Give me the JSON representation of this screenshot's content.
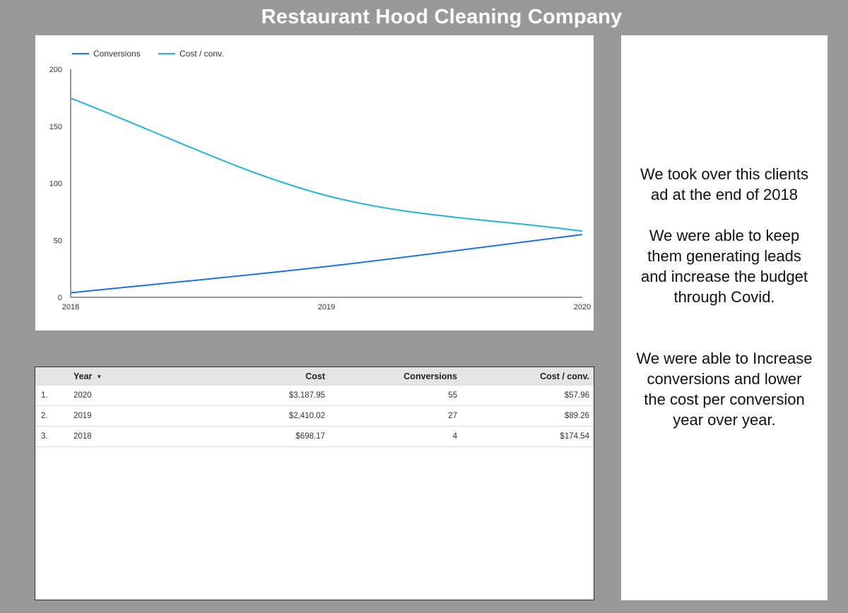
{
  "header": {
    "title": "Restaurant Hood Cleaning Company"
  },
  "chart_data": {
    "type": "line",
    "x": [
      "2018",
      "2019",
      "2020"
    ],
    "ylim": [
      0,
      200
    ],
    "yticks": [
      0,
      50,
      100,
      150,
      200
    ],
    "grid": false,
    "legend_position": "top-left",
    "series": [
      {
        "name": "Conversions",
        "values": [
          4,
          27,
          55
        ],
        "color": "#1a73e8"
      },
      {
        "name": "Cost / conv.",
        "values": [
          174.54,
          89.26,
          57.96
        ],
        "color": "#1fb5d6"
      }
    ]
  },
  "table": {
    "headers": {
      "year": "Year",
      "cost": "Cost",
      "conversions": "Conversions",
      "cost_conv": "Cost / conv."
    },
    "rows": [
      {
        "index": "1.",
        "year": "2020",
        "cost": "$3,187.95",
        "conversions": "55",
        "cost_conv": "$57.96"
      },
      {
        "index": "2.",
        "year": "2019",
        "cost": "$2,410.02",
        "conversions": "27",
        "cost_conv": "$89.26"
      },
      {
        "index": "3.",
        "year": "2018",
        "cost": "$698.17",
        "conversions": "4",
        "cost_conv": "$174.54"
      }
    ]
  },
  "notes": {
    "first": "We took over this clients\nad at the end of 2018\n\nWe were able to keep\nthem generating leads\nand increase the budget\nthrough Covid.",
    "second": "We were able to Increase\nconversions and lower\nthe cost per conversion\nyear over year."
  }
}
